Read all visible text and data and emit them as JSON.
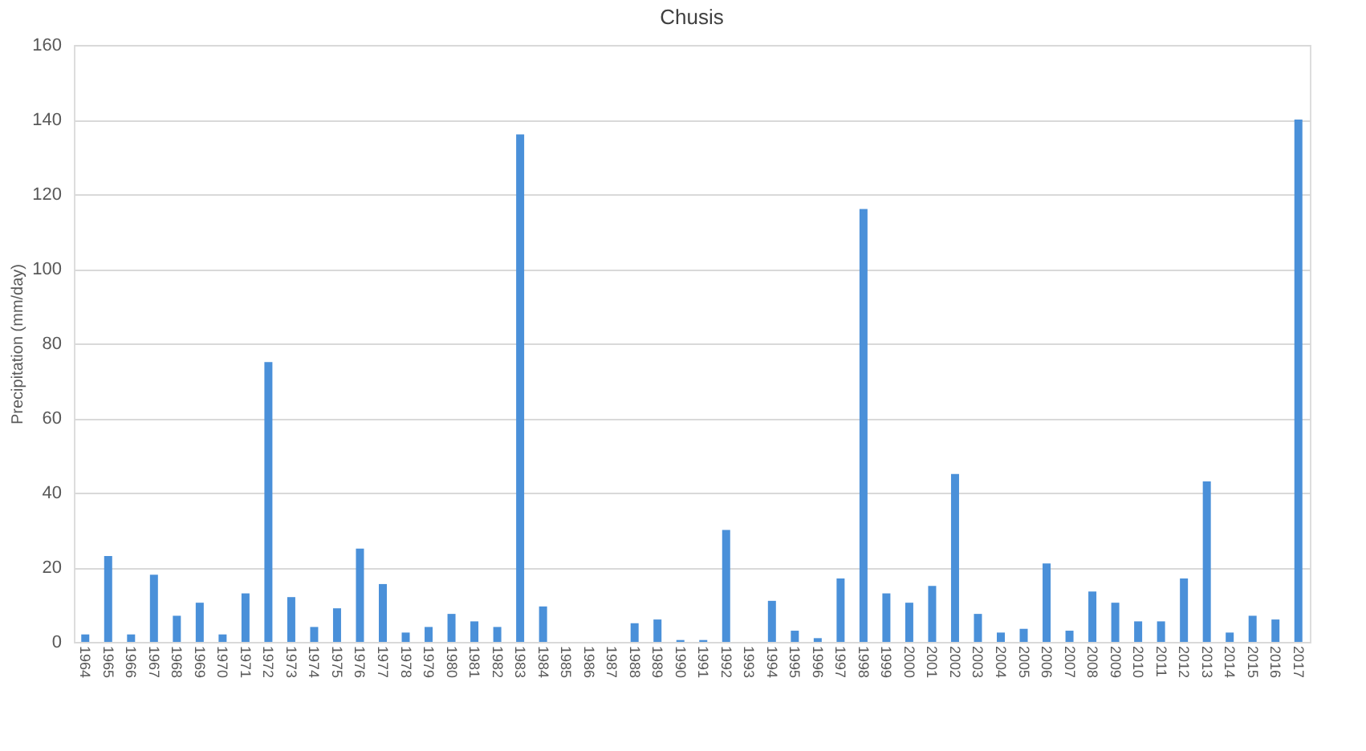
{
  "chart_data": {
    "type": "bar",
    "title": "Chusis",
    "ylabel": "Precipitation (mm/day)",
    "categories": [
      "1964",
      "1965",
      "1966",
      "1967",
      "1968",
      "1969",
      "1970",
      "1971",
      "1972",
      "1973",
      "1974",
      "1975",
      "1976",
      "1977",
      "1978",
      "1979",
      "1980",
      "1981",
      "1982",
      "1983",
      "1984",
      "1985",
      "1986",
      "1987",
      "1988",
      "1989",
      "1990",
      "1991",
      "1992",
      "1993",
      "1994",
      "1995",
      "1996",
      "1997",
      "1998",
      "1999",
      "2000",
      "2001",
      "2002",
      "2003",
      "2004",
      "2005",
      "2006",
      "2007",
      "2008",
      "2009",
      "2010",
      "2011",
      "2012",
      "2013",
      "2014",
      "2015",
      "2016",
      "2017"
    ],
    "values": [
      2,
      23,
      2,
      18,
      7,
      10.5,
      2,
      13,
      75,
      12,
      4,
      9,
      25,
      15.5,
      2.5,
      4,
      7.5,
      5.5,
      4,
      136,
      9.5,
      0,
      0,
      0,
      5,
      6,
      0.5,
      0.5,
      30,
      0,
      11,
      3,
      1,
      17,
      116,
      13,
      10.5,
      15,
      45,
      7.5,
      2.5,
      3.5,
      21,
      3,
      13.5,
      10.5,
      5.5,
      5.5,
      17,
      43,
      2.5,
      7,
      6,
      140
    ],
    "color": "#4a90d9",
    "ylim": [
      0,
      160
    ],
    "yticks": [
      0,
      20,
      40,
      60,
      80,
      100,
      120,
      140,
      160
    ],
    "grid": "y"
  }
}
